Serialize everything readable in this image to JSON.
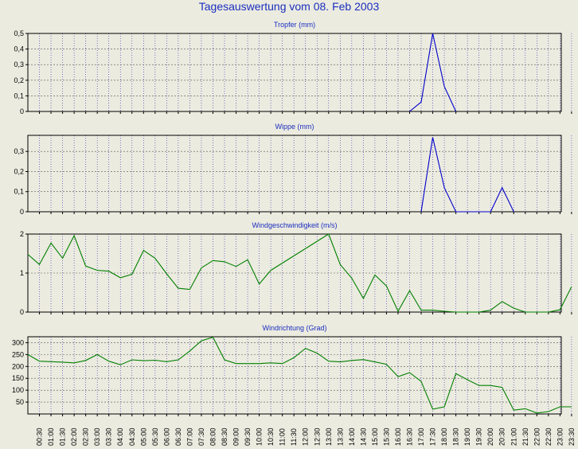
{
  "page_title": "Tagesauswertung vom 08. Feb 2003",
  "x_labels": [
    "00:30",
    "01:00",
    "01:30",
    "02:00",
    "02:30",
    "03:00",
    "03:30",
    "04:00",
    "04:30",
    "05:00",
    "05:30",
    "06:00",
    "06:30",
    "07:00",
    "07:30",
    "08:00",
    "08:30",
    "09:00",
    "09:30",
    "10:00",
    "10:30",
    "11:00",
    "11:30",
    "12:00",
    "12:30",
    "13:00",
    "13:30",
    "14:00",
    "14:30",
    "15:00",
    "15:30",
    "16:00",
    "16:30",
    "17:00",
    "17:30",
    "18:00",
    "18:30",
    "19:00",
    "19:30",
    "20:00",
    "20:30",
    "21:00",
    "21:30",
    "22:00",
    "22:30",
    "23:00",
    "23:30"
  ],
  "chart_data": [
    {
      "type": "line",
      "title": "Tropfer (mm)",
      "color": "#0000cc",
      "ylim": [
        0,
        0.5
      ],
      "yticks": [
        0,
        0.1,
        0.2,
        0.3,
        0.4,
        0.5
      ],
      "ytick_labels": [
        "0",
        "0,1",
        "0,2",
        "0,3",
        "0,4",
        "0,5"
      ],
      "grid": true,
      "x": [
        "16:30",
        "17:00",
        "17:30",
        "18:00",
        "18:30"
      ],
      "values": [
        0,
        0.06,
        0.5,
        0.16,
        0
      ]
    },
    {
      "type": "line",
      "title": "Wippe (mm)",
      "color": "#0000cc",
      "ylim": [
        0,
        0.38
      ],
      "yticks": [
        0,
        0.1,
        0.2,
        0.3
      ],
      "ytick_labels": [
        "0",
        "0,1",
        "0,2",
        "0,3"
      ],
      "grid": true,
      "x": [
        "17:00",
        "17:30",
        "18:00",
        "18:30",
        "20:00",
        "20:30",
        "21:00"
      ],
      "values": [
        0,
        0.37,
        0.12,
        0,
        0,
        0.12,
        0
      ]
    },
    {
      "type": "line",
      "title": "Windgeschwindigkeit (m/s)",
      "color": "#008000",
      "ylim": [
        0,
        2
      ],
      "yticks": [
        0,
        1,
        2
      ],
      "ytick_labels": [
        "0",
        "1",
        "2"
      ],
      "grid": true,
      "x": [
        "00:00",
        "00:30",
        "01:00",
        "01:30",
        "02:00",
        "02:30",
        "03:00",
        "03:30",
        "04:00",
        "04:30",
        "05:00",
        "05:30",
        "06:00",
        "06:30",
        "07:00",
        "07:30",
        "08:00",
        "08:30",
        "09:00",
        "09:30",
        "10:00",
        "10:30",
        "13:00",
        "13:30",
        "14:00",
        "14:30",
        "15:00",
        "15:30",
        "16:00",
        "16:30",
        "17:00",
        "17:30",
        "18:00",
        "18:30",
        "19:00",
        "19:30",
        "20:00",
        "20:30",
        "21:00",
        "21:30",
        "22:00",
        "22:30",
        "23:00",
        "23:30"
      ],
      "values": [
        1.48,
        1.22,
        1.77,
        1.38,
        1.96,
        1.18,
        1.07,
        1.05,
        0.88,
        0.97,
        1.58,
        1.38,
        0.98,
        0.61,
        0.58,
        1.13,
        1.32,
        1.29,
        1.17,
        1.34,
        0.72,
        1.07,
        2.0,
        1.22,
        0.87,
        0.35,
        0.95,
        0.67,
        0.02,
        0.55,
        0.05,
        0.05,
        0.02,
        0.0,
        0.0,
        0.0,
        0.05,
        0.27,
        0.1,
        0.0,
        0.0,
        0.0,
        0.06,
        0.65
      ]
    },
    {
      "type": "line",
      "title": "Windrichtung (Grad)",
      "color": "#008000",
      "ylim": [
        0,
        325
      ],
      "yticks": [
        50,
        100,
        150,
        200,
        250,
        300
      ],
      "ytick_labels": [
        "50",
        "100",
        "150",
        "200",
        "250",
        "300"
      ],
      "grid": true,
      "x": [
        "00:00",
        "00:30",
        "01:00",
        "01:30",
        "02:00",
        "02:30",
        "03:00",
        "03:30",
        "04:00",
        "04:30",
        "05:00",
        "05:30",
        "06:00",
        "06:30",
        "07:00",
        "07:30",
        "08:00",
        "08:30",
        "09:00",
        "09:30",
        "10:00",
        "10:30",
        "11:00",
        "11:30",
        "12:00",
        "12:30",
        "13:00",
        "13:30",
        "14:00",
        "14:30",
        "15:00",
        "15:30",
        "16:00",
        "16:30",
        "17:00",
        "17:30",
        "18:00",
        "18:30",
        "19:00",
        "19:30",
        "20:00",
        "20:30",
        "21:00",
        "21:30",
        "22:00",
        "22:30",
        "23:00",
        "23:30"
      ],
      "values": [
        250,
        222,
        220,
        218,
        215,
        225,
        250,
        222,
        207,
        228,
        224,
        226,
        220,
        228,
        265,
        308,
        323,
        228,
        212,
        212,
        212,
        215,
        212,
        237,
        276,
        256,
        222,
        219,
        225,
        229,
        219,
        209,
        157,
        174,
        137,
        20,
        30,
        170,
        144,
        120,
        120,
        112,
        16,
        22,
        4,
        10,
        30,
        30
      ]
    }
  ]
}
